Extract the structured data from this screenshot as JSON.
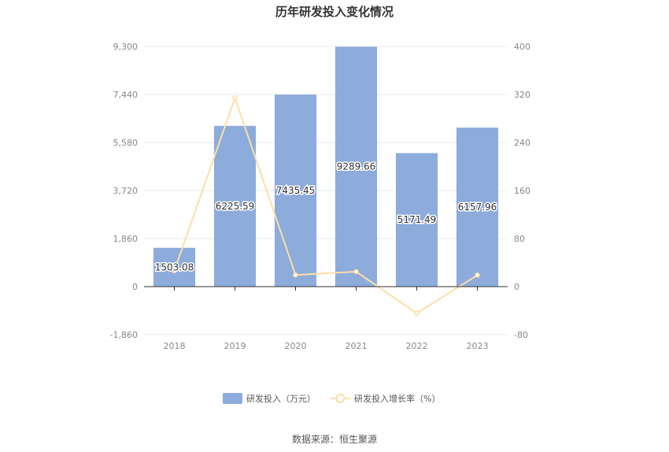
{
  "chart_data": {
    "type": "bar",
    "title": "历年研发投入变化情况",
    "categories": [
      "2018",
      "2019",
      "2020",
      "2021",
      "2022",
      "2023"
    ],
    "series": [
      {
        "name": "研发投入（万元）",
        "type": "bar",
        "axis": "left",
        "values": [
          1503.08,
          6225.59,
          7435.45,
          9289.66,
          5171.49,
          6157.96
        ],
        "value_labels": [
          "1503.08",
          "6225.59",
          "7435.45",
          "9289.66",
          "5171.49",
          "6157.96"
        ]
      },
      {
        "name": "研发投入增长率（%）",
        "type": "line",
        "axis": "right",
        "values": [
          26.5,
          314.2,
          19.4,
          24.9,
          -44.3,
          19.1
        ]
      }
    ],
    "y_left": {
      "ylim": [
        -1860,
        9300
      ],
      "ticks": [
        "9,300",
        "7,440",
        "5,580",
        "3,720",
        "1,860",
        "0",
        "-1,860"
      ]
    },
    "y_right": {
      "ylim": [
        -80,
        400
      ],
      "ticks": [
        "400",
        "320",
        "240",
        "160",
        "80",
        "0",
        "-80"
      ]
    },
    "legend_position": "bottom",
    "grid": true,
    "colors": {
      "bar": "#8dacdb",
      "line": "#fddea5",
      "axis": "#333333",
      "grid": "#e8e8e8"
    }
  },
  "source_text": "数据来源：恒生聚源"
}
